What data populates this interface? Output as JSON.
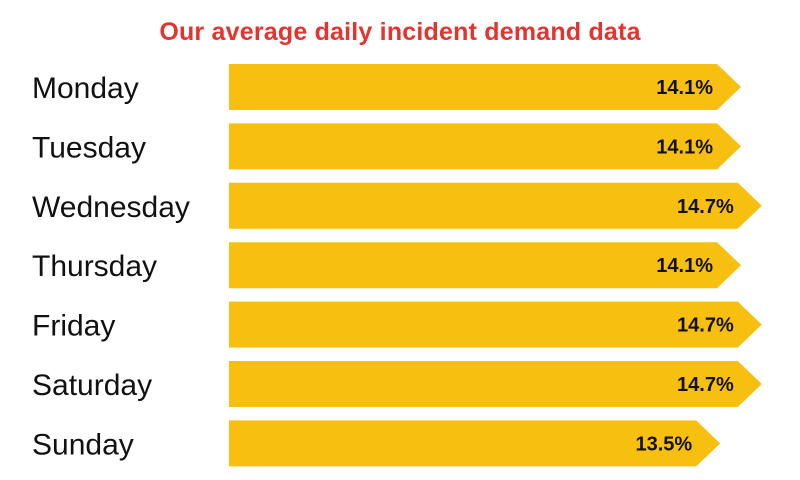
{
  "chart_data": {
    "type": "bar",
    "orientation": "horizontal",
    "title": "Our average daily incident demand data",
    "categories": [
      "Monday",
      "Tuesday",
      "Wednesday",
      "Thursday",
      "Friday",
      "Saturday",
      "Sunday"
    ],
    "values": [
      14.1,
      14.1,
      14.7,
      14.1,
      14.7,
      14.7,
      13.5
    ],
    "value_labels": [
      "14.1%",
      "14.1%",
      "14.7%",
      "14.1%",
      "14.7%",
      "14.7%",
      "13.5%"
    ],
    "unit": "%",
    "xlabel": "",
    "ylabel": "",
    "grid": false,
    "colors": {
      "bar": "#f7bf0f",
      "title": "#e3342f",
      "text": "#111111"
    }
  }
}
